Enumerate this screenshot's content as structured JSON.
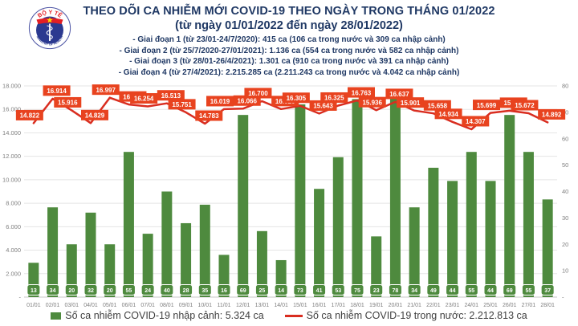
{
  "logo": {
    "top_text": "BỘ Y TẾ",
    "bottom_text": "MINISTRY OF HEALTH"
  },
  "colors": {
    "bar": "#4E8A3E",
    "line": "#D92D20",
    "line_label_bg": "#E8431F",
    "title_text": "#1F3864",
    "axis_text": "#7F7F7F",
    "grid": "#E5E5E5",
    "axis_line": "#C8C8C8",
    "legend_text": "#404040",
    "logo_navy": "#2B3990",
    "logo_red": "#E31E24",
    "logo_star": "#FFDE00"
  },
  "chart_data": {
    "type": "combo",
    "title": "THEO DÕI CA NHIỄM MỚI COVID-19 THEO NGÀY TRONG THÁNG 01/2022",
    "subtitle": "(từ ngày 01/01/2022 đến ngày 28/01/2022)",
    "annotations": [
      "- Giai đoạn 1 (từ 23/01-24/7/2020): 415 ca (106 ca trong nước và 309 ca nhập cảnh)",
      "- Giai đoạn 2 (từ 25/7/2020-27/01/2021): 1.136 ca (554 ca trong nước và 582 ca nhập cảnh)",
      "- Giai đoạn 3 (từ 28/01-26/4/2021): 1.301 ca (910 ca trong nước và 391 ca nhập cảnh)",
      "- Giai đoạn 4 (từ 27/4/2021): 2.215.285 ca (2.211.243 ca trong nước và 4.042 ca nhập cảnh)"
    ],
    "categories": [
      "01/01",
      "02/01",
      "03/01",
      "04/01",
      "05/01",
      "06/01",
      "07/01",
      "08/01",
      "09/01",
      "10/01",
      "11/01",
      "12/01",
      "13/01",
      "14/01",
      "15/01",
      "16/01",
      "17/01",
      "18/01",
      "19/01",
      "20/01",
      "21/01",
      "22/01",
      "23/01",
      "24/01",
      "25/01",
      "26/01",
      "27/01",
      "28/01"
    ],
    "series": [
      {
        "name": "Số ca nhiễm COVID-19 nhập cảnh",
        "type": "bar",
        "axis": "right",
        "color": "#4E8A3E",
        "values": [
          13,
          34,
          20,
          32,
          20,
          55,
          24,
          40,
          28,
          35,
          16,
          69,
          25,
          14,
          73,
          41,
          53,
          75,
          23,
          78,
          34,
          49,
          44,
          55,
          44,
          69,
          55,
          37
        ]
      },
      {
        "name": "Số ca nhiễm COVID-19 trong nước",
        "type": "line",
        "axis": "left",
        "color": "#D92D20",
        "label_bg": "#E8431F",
        "values": [
          14822,
          16914,
          15916,
          14829,
          16997,
          16417,
          16254,
          16513,
          15751,
          14783,
          16019,
          16066,
          16700,
          16026,
          16305,
          15643,
          16325,
          16763,
          15936,
          16637,
          15901,
          15658,
          14934,
          14307,
          15699,
          15885,
          15672,
          14892
        ]
      }
    ],
    "left_axis": {
      "min": 0,
      "max": 18000,
      "step": 2000,
      "zero_label": "-"
    },
    "right_axis": {
      "min": 0,
      "max": 80,
      "step": 10,
      "zero_label": "-"
    },
    "grid": true,
    "legend_position": "bottom",
    "legend": [
      {
        "label": "Số ca nhiễm COVID-19 nhập cảnh: 5.324 ca",
        "swatch": "square",
        "color": "#4E8A3E"
      },
      {
        "label": "Số ca nhiễm COVID-19 trong nước: 2.212.813 ca",
        "swatch": "dash",
        "color": "#D92D20"
      }
    ]
  }
}
